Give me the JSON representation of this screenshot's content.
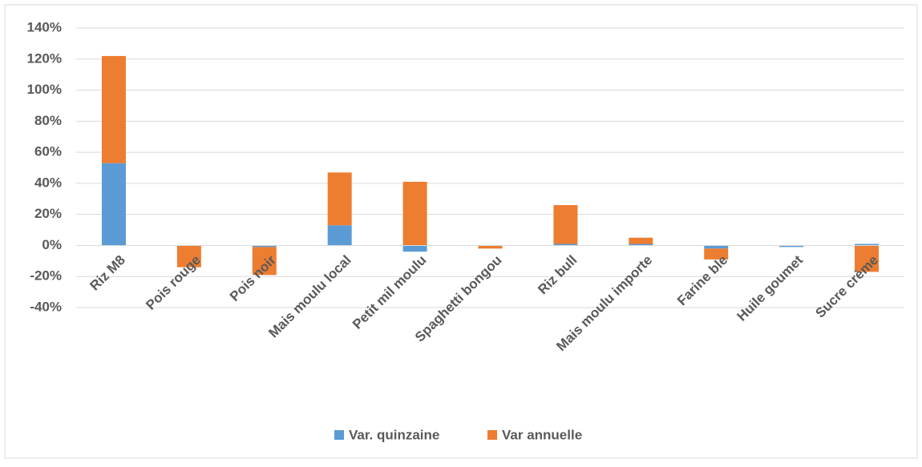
{
  "chart_data": {
    "type": "stacked_bar",
    "categories": [
      "Riz M8",
      "Pois rouge",
      "Pois noir",
      "Mais moulu local",
      "Petit mil moulu",
      "Spaghetti bongou",
      "Riz bull",
      "Mais moulu importe",
      "Farine ble",
      "Huile goumet",
      "Sucre crème"
    ],
    "series": [
      {
        "name": "Var. quinzaine",
        "color": "#5b9bd5",
        "values": [
          53,
          0,
          -1,
          13,
          -4,
          0,
          1,
          1,
          -2,
          -1,
          1
        ]
      },
      {
        "name": "Var annuelle",
        "color": "#ed7d31",
        "values": [
          69,
          -14,
          -18,
          34,
          41,
          -2,
          25,
          4,
          -7,
          0,
          -17
        ]
      }
    ],
    "ylim": [
      -40,
      140
    ],
    "yticks": [
      {
        "value": -40,
        "label": "-40%"
      },
      {
        "value": -20,
        "label": "-20%"
      },
      {
        "value": 0,
        "label": "0%"
      },
      {
        "value": 20,
        "label": "20%"
      },
      {
        "value": 40,
        "label": "40%"
      },
      {
        "value": 60,
        "label": "60%"
      },
      {
        "value": 80,
        "label": "80%"
      },
      {
        "value": 100,
        "label": "100%"
      },
      {
        "value": 120,
        "label": "120%"
      },
      {
        "value": 140,
        "label": "140%"
      }
    ],
    "grid": true,
    "legend": "bottom"
  }
}
